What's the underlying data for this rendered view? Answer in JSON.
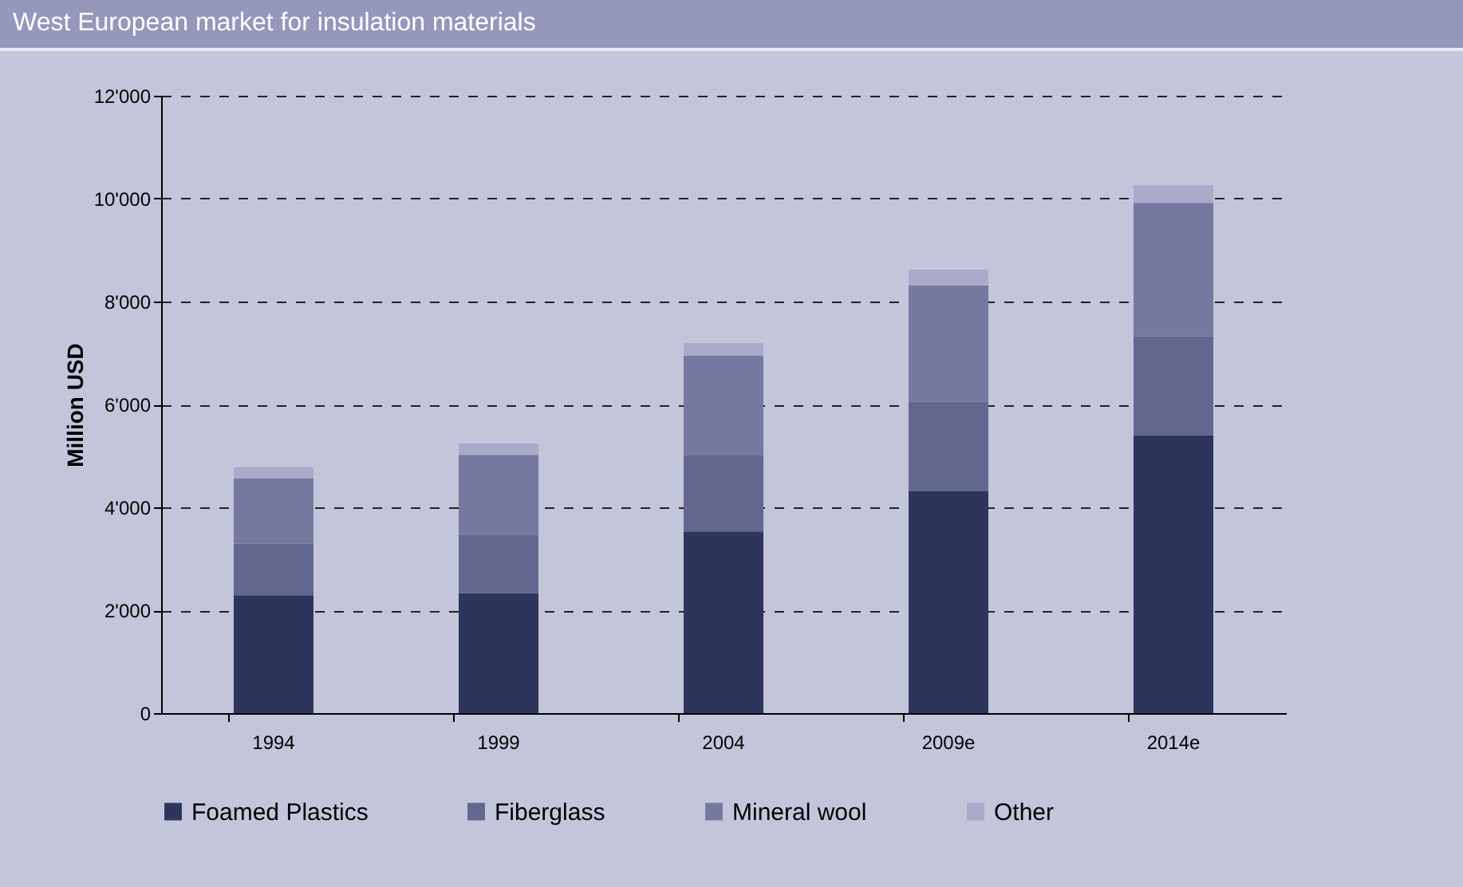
{
  "chart_data": {
    "type": "bar",
    "title": "West European market for insulation materials",
    "ylabel": "Million USD",
    "categories": [
      "1994",
      "1999",
      "2004",
      "2009e",
      "2014e"
    ],
    "series": [
      {
        "name": "Foamed Plastics",
        "color": "#2d355c",
        "values": [
          2290,
          2330,
          3530,
          4310,
          5400
        ]
      },
      {
        "name": "Fiberglass",
        "color": "#626790",
        "values": [
          1000,
          1140,
          1490,
          1740,
          1920
        ]
      },
      {
        "name": "Mineral wool",
        "color": "#76799f",
        "values": [
          1270,
          1550,
          1930,
          2260,
          2600
        ]
      },
      {
        "name": "Other",
        "color": "#a8aac8",
        "values": [
          220,
          220,
          240,
          310,
          340
        ]
      }
    ],
    "stacked": true,
    "ylim": [
      0,
      12000
    ],
    "yticks": [
      0,
      {
        "value": 2000,
        "label": "2'000"
      },
      {
        "value": 4000,
        "label": "4'000"
      },
      {
        "value": 6000,
        "label": "6'000"
      },
      {
        "value": 8000,
        "label": "8'000"
      },
      {
        "value": 10000,
        "label": "10'000"
      },
      {
        "value": 12000,
        "label": "12'000"
      }
    ],
    "grid": "y",
    "legend": "bottom"
  }
}
